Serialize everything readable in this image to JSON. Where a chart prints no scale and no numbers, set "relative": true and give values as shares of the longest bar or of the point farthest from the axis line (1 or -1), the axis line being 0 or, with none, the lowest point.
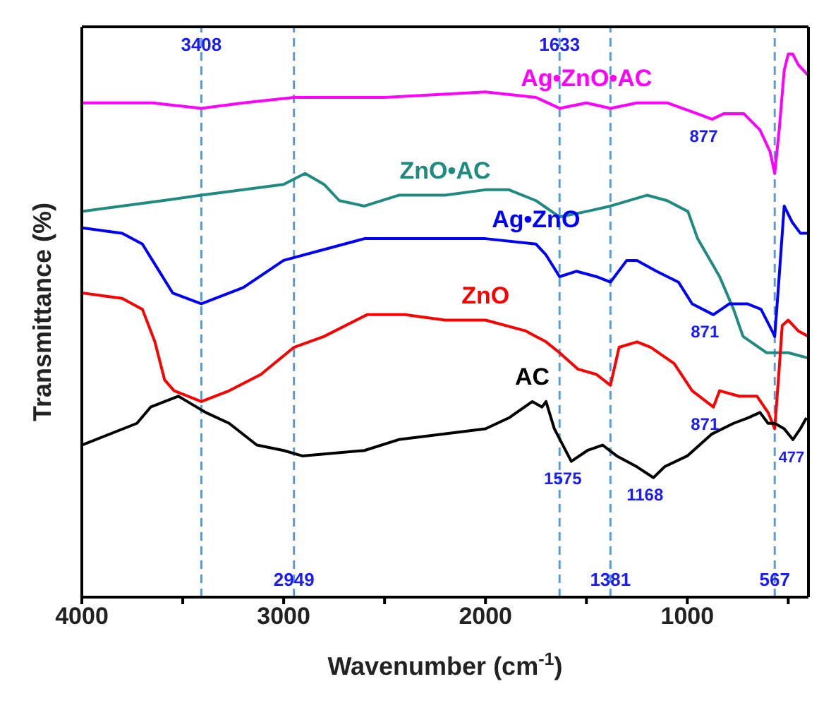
{
  "chart_data": {
    "type": "line",
    "relative": true,
    "xlabel": "Wavenumber (cm$^{-1}$)",
    "ylabel": "Transmittance (%)",
    "xlim": [
      4000,
      400
    ],
    "xticks": [
      4000,
      {
        "value": 3500,
        "label": null
      },
      3000,
      {
        "value": 2500,
        "label": null
      },
      2000,
      {
        "value": 1500,
        "label": null
      },
      1000,
      {
        "value": 500,
        "label": null
      }
    ],
    "tick_labels": "x",
    "legend": false,
    "marker": "none",
    "line_style": "solid",
    "series": [
      {
        "name": "Ag•ZnO•AC",
        "color": "#ff00ff",
        "x": [
          4000,
          3800,
          3650,
          3408,
          3200,
          2949,
          2500,
          2000,
          1750,
          1633,
          1500,
          1381,
          1250,
          1100,
          950,
          877,
          820,
          720,
          640,
          590,
          567,
          545,
          520,
          500,
          478,
          450,
          400
        ],
        "values": [
          0.91,
          0.91,
          0.91,
          0.9,
          0.91,
          0.92,
          0.92,
          0.93,
          0.92,
          0.9,
          0.91,
          0.9,
          0.91,
          0.91,
          0.89,
          0.88,
          0.89,
          0.89,
          0.86,
          0.82,
          0.78,
          0.86,
          0.97,
          1.0,
          1.0,
          0.98,
          0.96
        ]
      },
      {
        "name": "ZnO•AC",
        "color": "#1e8a80",
        "x": [
          4000,
          3600,
          3408,
          3200,
          3000,
          2894,
          2800,
          2724,
          2600,
          2430,
          2200,
          2000,
          1884,
          1750,
          1633,
          1500,
          1381,
          1200,
          1100,
          997,
          949,
          840,
          771,
          724,
          608,
          500,
          400
        ],
        "values": [
          0.71,
          0.73,
          0.74,
          0.75,
          0.76,
          0.78,
          0.76,
          0.73,
          0.72,
          0.74,
          0.74,
          0.75,
          0.75,
          0.73,
          0.7,
          0.71,
          0.72,
          0.74,
          0.73,
          0.71,
          0.66,
          0.59,
          0.53,
          0.48,
          0.45,
          0.45,
          0.44
        ]
      },
      {
        "name": "Ag•ZnO",
        "color": "#0000ff",
        "x": [
          4000,
          3800,
          3700,
          3650,
          3550,
          3408,
          3200,
          3000,
          2800,
          2600,
          2400,
          2000,
          1750,
          1700,
          1633,
          1550,
          1450,
          1381,
          1300,
          1250,
          1153,
          1044,
          976,
          871,
          792,
          703,
          635,
          580,
          567,
          545,
          520,
          480,
          440,
          400
        ],
        "values": [
          0.68,
          0.67,
          0.65,
          0.62,
          0.56,
          0.54,
          0.57,
          0.62,
          0.64,
          0.66,
          0.66,
          0.66,
          0.65,
          0.63,
          0.59,
          0.6,
          0.59,
          0.58,
          0.62,
          0.62,
          0.6,
          0.58,
          0.54,
          0.52,
          0.54,
          0.54,
          0.53,
          0.49,
          0.48,
          0.59,
          0.72,
          0.69,
          0.67,
          0.67
        ]
      },
      {
        "name": "ZnO",
        "color": "#ff0000",
        "x": [
          4000,
          3800,
          3700,
          3638,
          3590,
          3543,
          3408,
          3270,
          3113,
          2949,
          2800,
          2587,
          2400,
          2200,
          2000,
          1800,
          1700,
          1633,
          1543,
          1450,
          1381,
          1338,
          1249,
          1181,
          1065,
          976,
          871,
          840,
          744,
          655,
          600,
          567,
          545,
          530,
          500,
          450,
          400
        ],
        "values": [
          0.56,
          0.55,
          0.53,
          0.47,
          0.4,
          0.38,
          0.36,
          0.38,
          0.41,
          0.46,
          0.48,
          0.52,
          0.52,
          0.51,
          0.51,
          0.49,
          0.47,
          0.45,
          0.42,
          0.41,
          0.39,
          0.46,
          0.47,
          0.46,
          0.43,
          0.38,
          0.35,
          0.38,
          0.37,
          0.37,
          0.34,
          0.31,
          0.42,
          0.5,
          0.51,
          0.49,
          0.48
        ]
      },
      {
        "name": "AC",
        "color": "#000000",
        "x": [
          4000,
          3727,
          3659,
          3522,
          3386,
          3270,
          3133,
          3000,
          2908,
          2600,
          2430,
          2000,
          1884,
          1768,
          1720,
          1700,
          1659,
          1575,
          1495,
          1420,
          1350,
          1250,
          1168,
          1113,
          1000,
          880,
          771,
          700,
          640,
          600,
          567,
          520,
          477,
          440,
          410
        ],
        "values": [
          0.28,
          0.32,
          0.35,
          0.37,
          0.34,
          0.32,
          0.28,
          0.27,
          0.26,
          0.27,
          0.29,
          0.31,
          0.33,
          0.36,
          0.35,
          0.36,
          0.31,
          0.25,
          0.27,
          0.28,
          0.26,
          0.24,
          0.22,
          0.24,
          0.26,
          0.3,
          0.32,
          0.33,
          0.34,
          0.32,
          0.32,
          0.31,
          0.29,
          0.31,
          0.33
        ]
      }
    ],
    "ref_lines": [
      {
        "axis": "x",
        "value": 3408,
        "label": "3408",
        "color": "#5b9bd5",
        "line_style": "dashed"
      },
      {
        "axis": "x",
        "value": 2949,
        "label": "2949",
        "color": "#5b9bd5",
        "line_style": "dashed"
      },
      {
        "axis": "x",
        "value": 1633,
        "label": "1633",
        "color": "#5b9bd5",
        "line_style": "dashed"
      },
      {
        "axis": "x",
        "value": 1381,
        "label": "1381",
        "color": "#5b9bd5",
        "line_style": "dashed"
      },
      {
        "axis": "x",
        "value": 567,
        "label": "567",
        "color": "#5b9bd5",
        "line_style": "dashed"
      }
    ],
    "annotations": [
      {
        "text": "877",
        "x": 877,
        "y": 0.88
      },
      {
        "text": "871",
        "x": 871,
        "y": 0.52
      },
      {
        "text": "871",
        "x": 871,
        "y": 0.35
      },
      {
        "text": "1575",
        "x": 1575,
        "y": 0.25
      },
      {
        "text": "1168",
        "x": 1168,
        "y": 0.22
      },
      {
        "text": "477",
        "x": 477,
        "y": 0.29
      }
    ]
  }
}
